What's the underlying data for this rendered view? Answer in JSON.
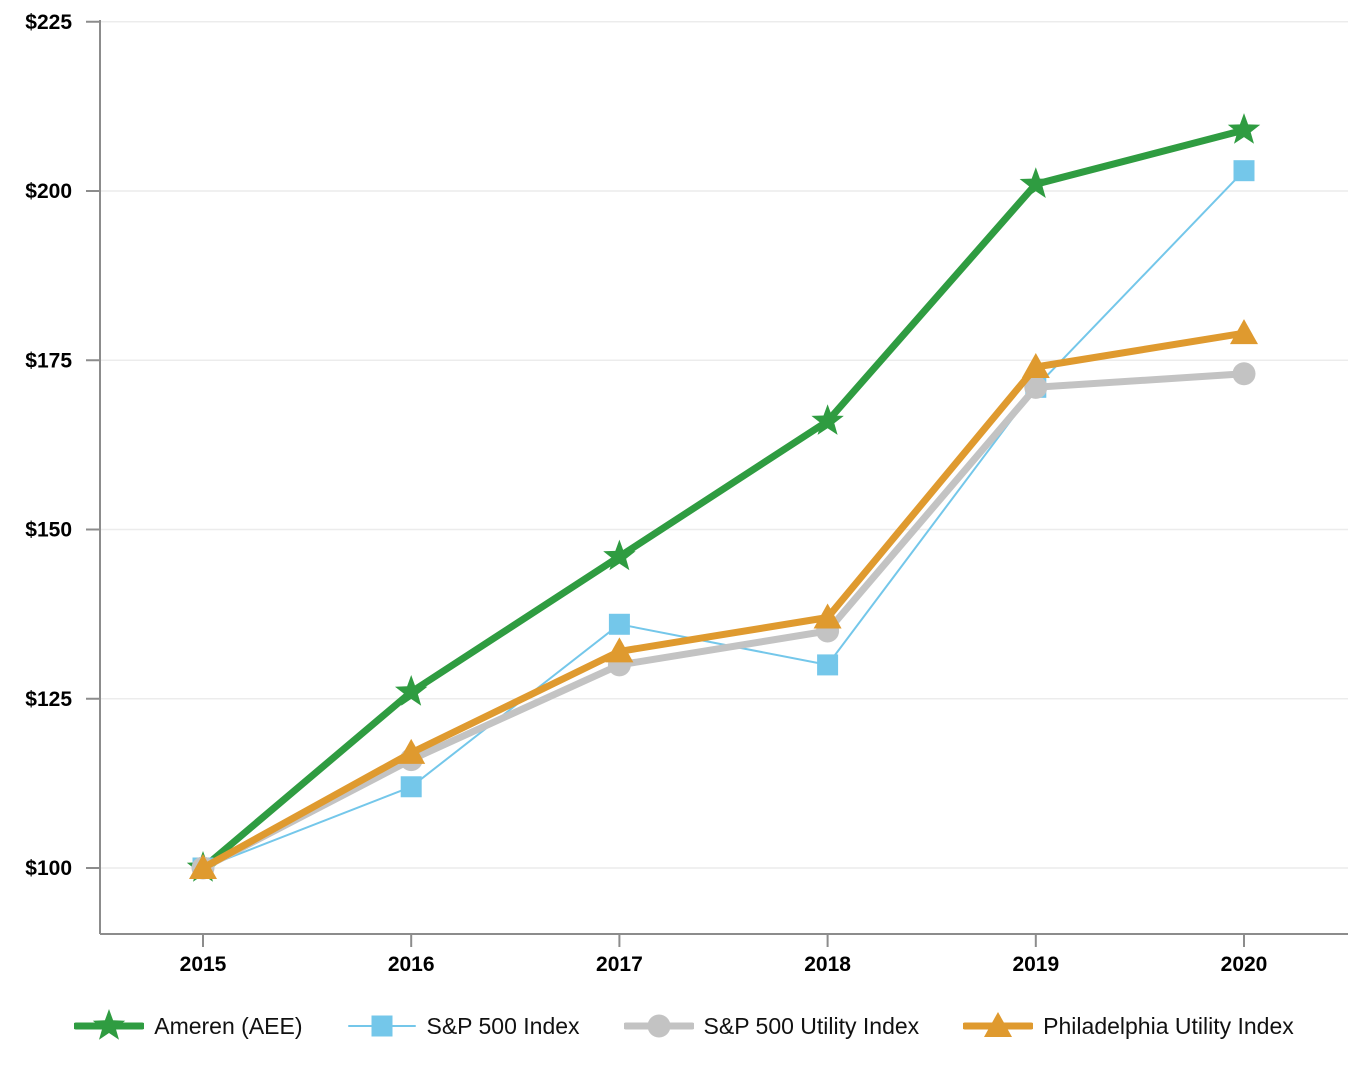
{
  "chart_data": {
    "type": "line",
    "title": "",
    "xlabel": "",
    "ylabel": "",
    "x_categories": [
      "2015",
      "2016",
      "2017",
      "2018",
      "2019",
      "2020"
    ],
    "y_ticks": [
      100,
      125,
      150,
      175,
      200,
      225
    ],
    "y_tick_prefix": "$",
    "ylim": [
      90,
      225
    ],
    "grid": true,
    "legend_position": "bottom",
    "series": [
      {
        "name": "Ameren (AEE)",
        "marker": "star",
        "color": "#2f9c41",
        "line_width": 7,
        "values": [
          100,
          126,
          146,
          166,
          201,
          209
        ]
      },
      {
        "name": "S&P 500 Index",
        "marker": "square",
        "color": "#74c7ea",
        "line_width": 2,
        "values": [
          100,
          112,
          136,
          130,
          171,
          203
        ]
      },
      {
        "name": "S&P 500 Utility Index",
        "marker": "circle",
        "color": "#c3c3c3",
        "line_width": 7,
        "values": [
          100,
          116,
          130,
          135,
          171,
          173
        ]
      },
      {
        "name": "Philadelphia Utility Index",
        "marker": "triangle",
        "color": "#df9a2f",
        "line_width": 7,
        "values": [
          100,
          117,
          132,
          137,
          174,
          179
        ]
      }
    ],
    "style": {
      "axis_color": "#8c8c8c",
      "grid_color": "#ececec",
      "tick_text_color": "#000000",
      "legend_text_color": "#111111"
    }
  }
}
